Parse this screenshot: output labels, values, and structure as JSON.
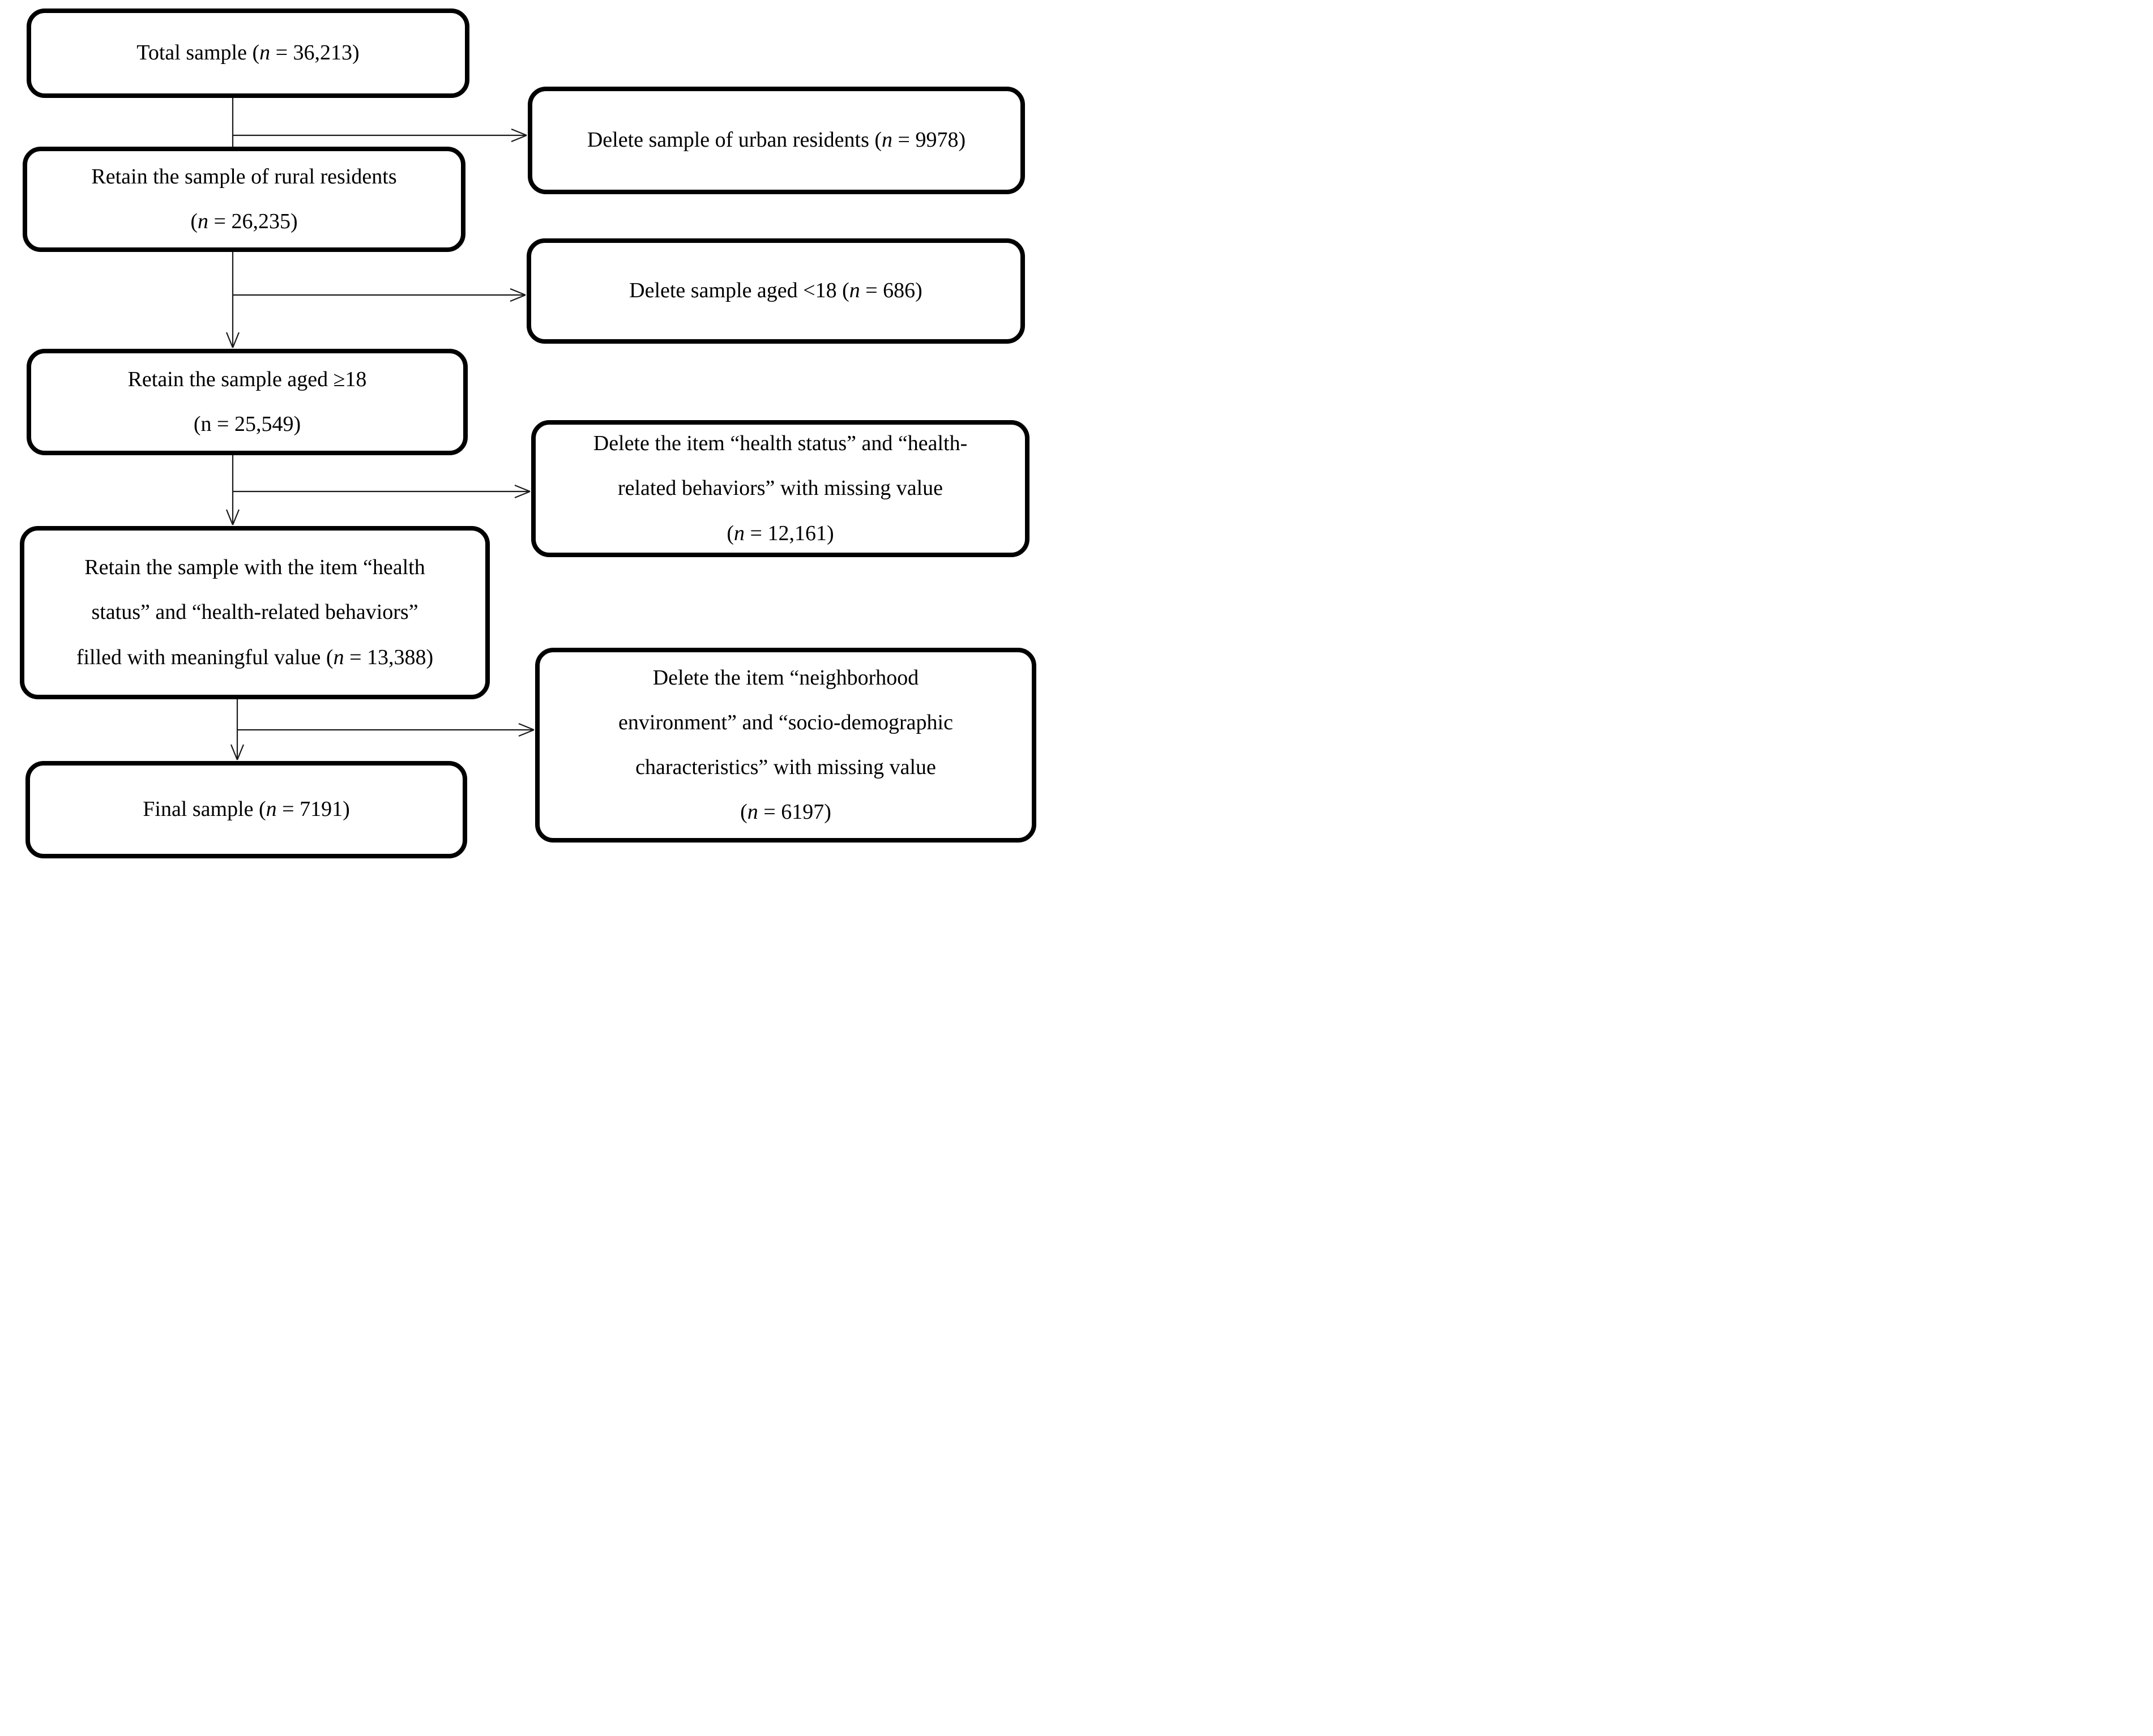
{
  "flowchart": {
    "type": "sample-selection-flow-diagram",
    "colors": {
      "background": "#ffffff",
      "box_border": "#000000",
      "text": "#000000",
      "connector": "#1a1a1a"
    },
    "nodes": [
      {
        "id": "total-sample",
        "side": "left",
        "lines": [
          [
            {
              "text": "Total sample ("
            },
            {
              "text": "n",
              "italic": true
            },
            {
              "text": " = 36,213)"
            }
          ]
        ]
      },
      {
        "id": "delete-urban",
        "side": "right",
        "lines": [
          [
            {
              "text": "Delete sample of urban residents ("
            },
            {
              "text": "n",
              "italic": true
            },
            {
              "text": " = 9978)"
            }
          ]
        ]
      },
      {
        "id": "retain-rural",
        "side": "left",
        "lines": [
          [
            {
              "text": "Retain the sample of rural residents"
            }
          ],
          [
            {
              "text": "("
            },
            {
              "text": "n",
              "italic": true
            },
            {
              "text": " = 26,235)"
            }
          ]
        ]
      },
      {
        "id": "delete-under18",
        "side": "right",
        "lines": [
          [
            {
              "text": "Delete sample aged <18 ("
            },
            {
              "text": "n",
              "italic": true
            },
            {
              "text": " = 686)"
            }
          ]
        ]
      },
      {
        "id": "retain-aged18",
        "side": "left",
        "lines": [
          [
            {
              "text": "Retain the sample aged ≥18"
            }
          ],
          [
            {
              "text": "(n = 25,549)"
            }
          ]
        ]
      },
      {
        "id": "delete-health-missing",
        "side": "right",
        "lines": [
          [
            {
              "text": "Delete the item “health status” and “health-"
            }
          ],
          [
            {
              "text": "related behaviors” with missing value"
            }
          ],
          [
            {
              "text": "("
            },
            {
              "text": "n",
              "italic": true
            },
            {
              "text": " = 12,161)"
            }
          ]
        ]
      },
      {
        "id": "retain-health-filled",
        "side": "left",
        "lines": [
          [
            {
              "text": "Retain the sample with the item “health"
            }
          ],
          [
            {
              "text": "status” and “health-related behaviors”"
            }
          ],
          [
            {
              "text": "filled with meaningful value ("
            },
            {
              "text": "n",
              "italic": true
            },
            {
              "text": " = 13,388)"
            }
          ]
        ]
      },
      {
        "id": "delete-neighborhood-missing",
        "side": "right",
        "lines": [
          [
            {
              "text": "Delete the item “neighborhood"
            }
          ],
          [
            {
              "text": "environment” and “socio-demographic"
            }
          ],
          [
            {
              "text": "characteristics” with missing value"
            }
          ],
          [
            {
              "text": "("
            },
            {
              "text": "n",
              "italic": true
            },
            {
              "text": " = 6197)"
            }
          ]
        ]
      },
      {
        "id": "final-sample",
        "side": "left",
        "lines": [
          [
            {
              "text": "Final sample ("
            },
            {
              "text": "n",
              "italic": true
            },
            {
              "text": " = 7191)"
            }
          ]
        ]
      }
    ],
    "edges": [
      {
        "from": "total-sample",
        "to": "delete-urban",
        "arrowhead": true
      },
      {
        "from": "total-sample",
        "to": "retain-rural",
        "arrowhead": false
      },
      {
        "from": "retain-rural",
        "to": "delete-under18",
        "arrowhead": true
      },
      {
        "from": "retain-rural",
        "to": "retain-aged18",
        "arrowhead": true
      },
      {
        "from": "retain-aged18",
        "to": "delete-health-missing",
        "arrowhead": true
      },
      {
        "from": "retain-aged18",
        "to": "retain-health-filled",
        "arrowhead": true
      },
      {
        "from": "retain-health-filled",
        "to": "delete-neighborhood-missing",
        "arrowhead": true
      },
      {
        "from": "retain-health-filled",
        "to": "final-sample",
        "arrowhead": true
      }
    ]
  }
}
